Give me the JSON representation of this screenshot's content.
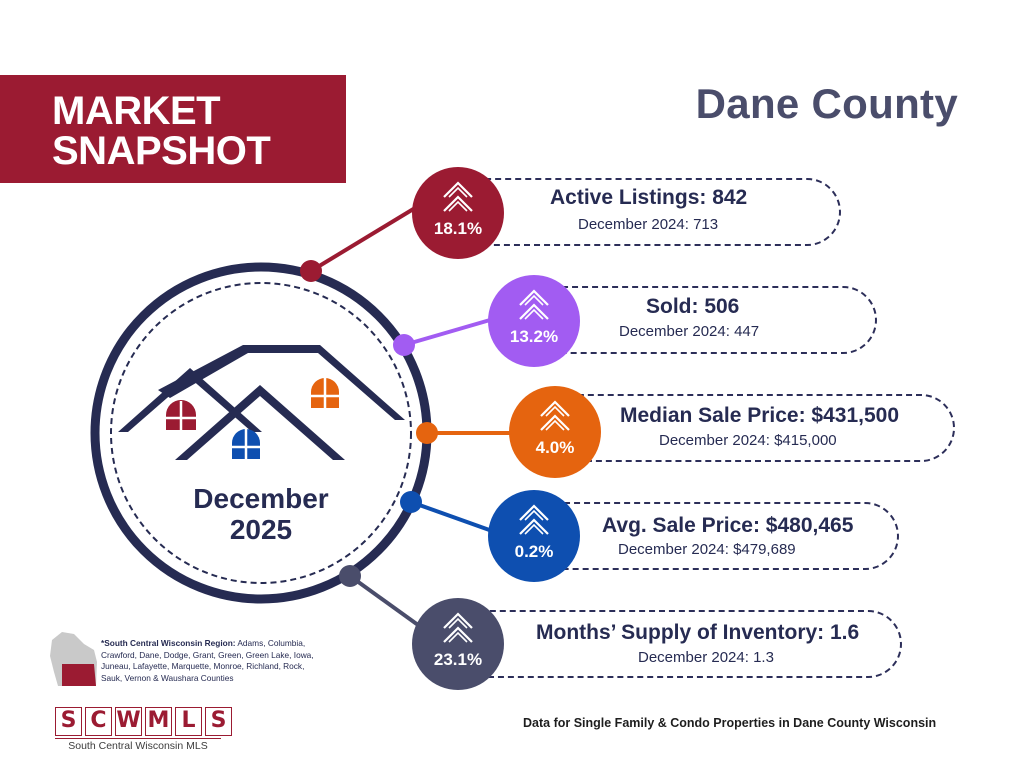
{
  "header": {
    "banner_line1": "MARKET",
    "banner_line2": "SNAPSHOT",
    "county": "Dane County"
  },
  "center": {
    "month": "December",
    "year": "2025"
  },
  "metrics": [
    {
      "title": "Active Listings: 842",
      "prior": "December 2024: 713",
      "change": "18.1%",
      "color": "#9b1b32",
      "direction": "up"
    },
    {
      "title": "Sold: 506",
      "prior": "December 2024: 447",
      "change": "13.2%",
      "color": "#a25cf2",
      "direction": "up"
    },
    {
      "title": "Median Sale Price: $431,500",
      "prior": "December 2024: $415,000",
      "change": "4.0%",
      "color": "#e5640f",
      "direction": "up"
    },
    {
      "title": "Avg. Sale Price: $480,465",
      "prior": "December 2024: $479,689",
      "change": "0.2%",
      "color": "#0e4fb0",
      "direction": "up"
    },
    {
      "title": "Months’ Supply of Inventory: 1.6",
      "prior": "December 2024:  1.3",
      "change": "23.1%",
      "color": "#4a4d6b",
      "direction": "up"
    }
  ],
  "region": {
    "label": "*South Central Wisconsin Region:",
    "counties": "Adams, Columbia, Crawford, Dane, Dodge, Grant, Green, Green Lake, Iowa, Juneau, Lafayette, Marquette, Monroe, Richland, Rock, Sauk, Vernon & Waushara Counties"
  },
  "logo": {
    "letters": [
      "S",
      "C",
      "W",
      "M",
      "L",
      "S"
    ],
    "subtitle": "South Central Wisconsin MLS"
  },
  "footer": {
    "note": "Data for Single Family & Condo Properties in Dane County Wisconsin"
  },
  "icons": {
    "badge_icon": "double-chevron-up-icon",
    "hero_icon": "houses-icon",
    "map_icon": "wisconsin-map-icon"
  }
}
